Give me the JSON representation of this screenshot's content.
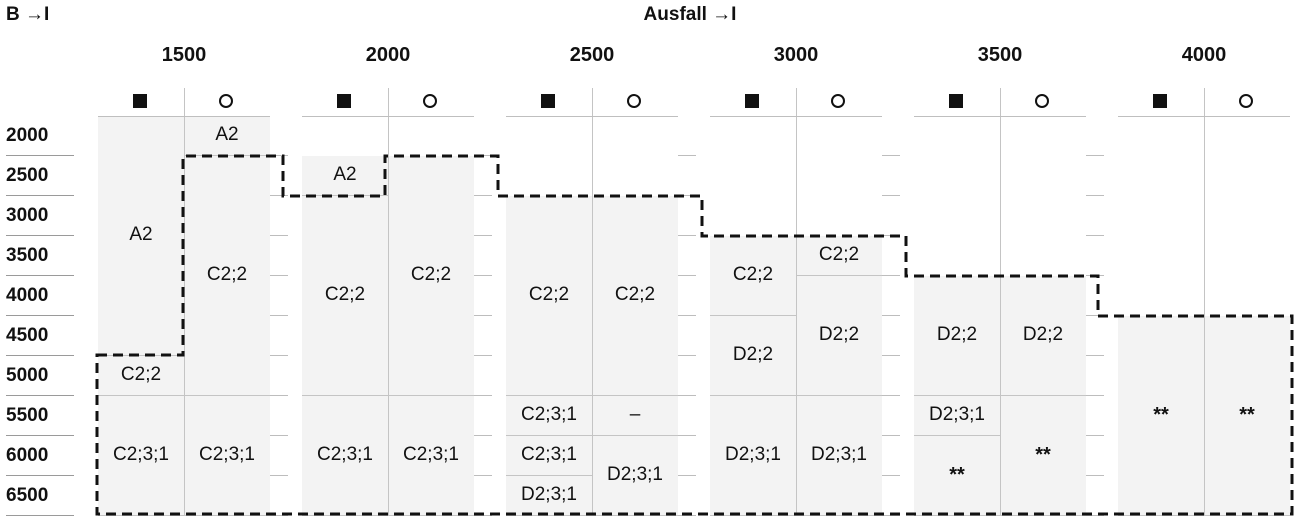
{
  "header": {
    "row_axis": "B →I",
    "col_axis": "Ausfall →I"
  },
  "symbols": {
    "filled": "■",
    "open": "○"
  },
  "columns": [
    "1500",
    "2000",
    "2500",
    "3000",
    "3500",
    "4000"
  ],
  "rows": [
    "2000",
    "2500",
    "3000",
    "3500",
    "4000",
    "4500",
    "5000",
    "5500",
    "6000",
    "6500"
  ],
  "cells": [
    {
      "col": 0,
      "sub": "filled",
      "from": "2000",
      "to": "4500",
      "text": "A2"
    },
    {
      "col": 0,
      "sub": "filled",
      "from": "5000",
      "to": "5000",
      "text": "C2;2"
    },
    {
      "col": 0,
      "sub": "filled",
      "from": "5500",
      "to": "6500",
      "text": "C2;3;1"
    },
    {
      "col": 0,
      "sub": "open",
      "from": "2000",
      "to": "2000",
      "text": "A2"
    },
    {
      "col": 0,
      "sub": "open",
      "from": "2500",
      "to": "5000",
      "text": "C2;2"
    },
    {
      "col": 0,
      "sub": "open",
      "from": "5500",
      "to": "6500",
      "text": "C2;3;1"
    },
    {
      "col": 1,
      "sub": "filled",
      "from": "2500",
      "to": "2500",
      "text": "A2"
    },
    {
      "col": 1,
      "sub": "filled",
      "from": "3000",
      "to": "5000",
      "text": "C2;2"
    },
    {
      "col": 1,
      "sub": "filled",
      "from": "5500",
      "to": "6500",
      "text": "C2;3;1"
    },
    {
      "col": 1,
      "sub": "open",
      "from": "2500",
      "to": "5000",
      "text": "C2;2"
    },
    {
      "col": 1,
      "sub": "open",
      "from": "5500",
      "to": "6500",
      "text": "C2;3;1"
    },
    {
      "col": 2,
      "sub": "filled",
      "from": "3000",
      "to": "5000",
      "text": "C2;2"
    },
    {
      "col": 2,
      "sub": "filled",
      "from": "5500",
      "to": "5500",
      "text": "C2;3;1"
    },
    {
      "col": 2,
      "sub": "filled",
      "from": "6000",
      "to": "6000",
      "text": "C2;3;1"
    },
    {
      "col": 2,
      "sub": "filled",
      "from": "6500",
      "to": "6500",
      "text": "D2;3;1"
    },
    {
      "col": 2,
      "sub": "open",
      "from": "3000",
      "to": "5000",
      "text": "C2;2"
    },
    {
      "col": 2,
      "sub": "open",
      "from": "5500",
      "to": "5500",
      "text": "–"
    },
    {
      "col": 2,
      "sub": "open",
      "from": "6000",
      "to": "6500",
      "text": "D2;3;1"
    },
    {
      "col": 3,
      "sub": "filled",
      "from": "3500",
      "to": "4000",
      "text": "C2;2"
    },
    {
      "col": 3,
      "sub": "filled",
      "from": "4500",
      "to": "5000",
      "text": "D2;2"
    },
    {
      "col": 3,
      "sub": "filled",
      "from": "5500",
      "to": "6500",
      "text": "D2;3;1"
    },
    {
      "col": 3,
      "sub": "open",
      "from": "3500",
      "to": "3500",
      "text": "C2;2"
    },
    {
      "col": 3,
      "sub": "open",
      "from": "4000",
      "to": "5000",
      "text": "D2;2"
    },
    {
      "col": 3,
      "sub": "open",
      "from": "5500",
      "to": "6500",
      "text": "D2;3;1"
    },
    {
      "col": 4,
      "sub": "filled",
      "from": "4000",
      "to": "5000",
      "text": "D2;2"
    },
    {
      "col": 4,
      "sub": "filled",
      "from": "5500",
      "to": "5500",
      "text": "D2;3;1"
    },
    {
      "col": 4,
      "sub": "filled",
      "from": "6000",
      "to": "6500",
      "text": "**"
    },
    {
      "col": 4,
      "sub": "open",
      "from": "4000",
      "to": "5000",
      "text": "D2;2"
    },
    {
      "col": 4,
      "sub": "open",
      "from": "5500",
      "to": "6500",
      "text": "**"
    },
    {
      "col": 5,
      "sub": "filled",
      "from": "4500",
      "to": "6500",
      "text": "**"
    },
    {
      "col": 5,
      "sub": "open",
      "from": "4500",
      "to": "6500",
      "text": "**"
    }
  ]
}
